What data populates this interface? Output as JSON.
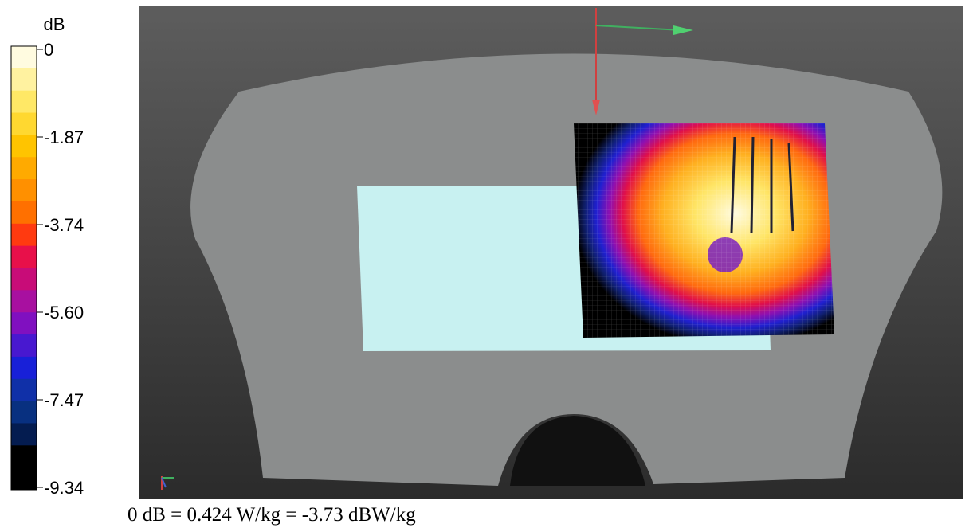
{
  "colorbar": {
    "unit": "dB",
    "ticks": [
      "0",
      "-1.87",
      "-3.74",
      "-5.60",
      "-7.47",
      "-9.34"
    ]
  },
  "footer": "0 dB = 0.424 W/kg = -3.73 dBW/kg"
}
